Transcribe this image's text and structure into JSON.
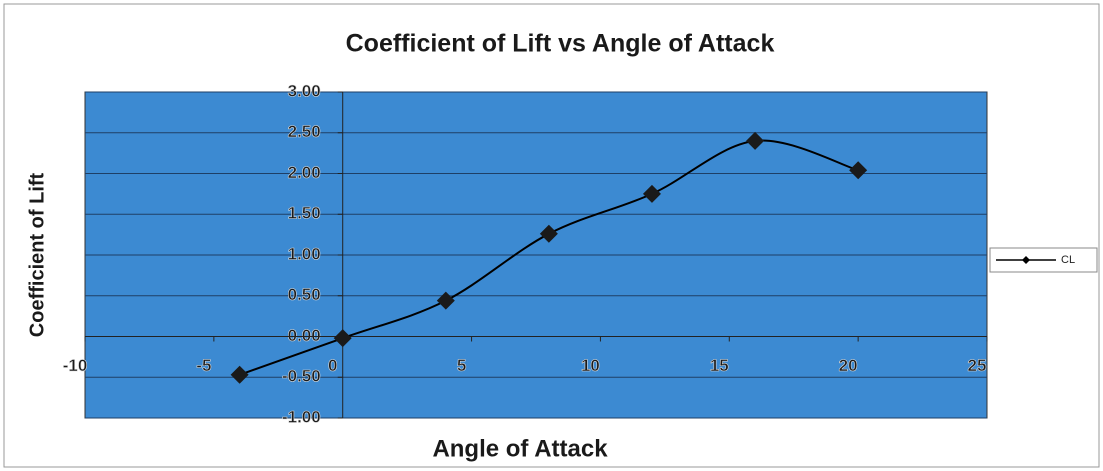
{
  "chart_data": {
    "type": "scatter",
    "title": "Coefficient of Lift vs Angle of Attack",
    "x_label": "Angle of Attack",
    "y_label": "Coefficient of Lift",
    "x": [
      -4,
      0,
      4,
      8,
      12,
      16,
      20
    ],
    "series": [
      {
        "name": "CL",
        "color": "#000000",
        "values": [
          -0.47,
          -0.02,
          0.44,
          1.26,
          1.75,
          2.4,
          2.04
        ]
      }
    ],
    "xlim": [
      -10,
      25
    ],
    "xticks": [
      -10,
      -5,
      0,
      5,
      10,
      15,
      20,
      25
    ],
    "ylim": [
      -1,
      3
    ],
    "yticks": [
      {
        "value": -1,
        "label": "-1.00"
      },
      {
        "value": -0.5,
        "label": "-0.50"
      },
      {
        "value": 0,
        "label": "0.00"
      },
      {
        "value": 0.5,
        "label": "0.50"
      },
      {
        "value": 1,
        "label": "1.00"
      },
      {
        "value": 1.5,
        "label": "1.50"
      },
      {
        "value": 2,
        "label": "2.00"
      },
      {
        "value": 2.5,
        "label": "2.50"
      },
      {
        "value": 3,
        "label": "3.00"
      }
    ],
    "grid": true,
    "legend": "right",
    "plot_background": "#3c8ad2"
  }
}
